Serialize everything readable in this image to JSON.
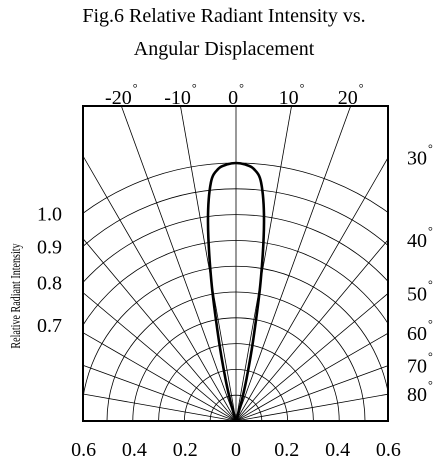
{
  "chart_data": {
    "type": "polar",
    "title_line1": "Fig.6 Relative Radiant Intensity vs.",
    "title_line2": "Angular Displacement",
    "ylabel": "Relative Radiant Intensity",
    "top_angle_ticks": [
      {
        "angle": -20,
        "label": "-20"
      },
      {
        "angle": -10,
        "label": "-10"
      },
      {
        "angle": 0,
        "label": "0"
      },
      {
        "angle": 10,
        "label": "10"
      },
      {
        "angle": 20,
        "label": "20"
      }
    ],
    "right_angle_ticks": [
      {
        "angle": 30,
        "label": "30"
      },
      {
        "angle": 40,
        "label": "40"
      },
      {
        "angle": 50,
        "label": "50"
      },
      {
        "angle": 60,
        "label": "60"
      },
      {
        "angle": 70,
        "label": "70"
      },
      {
        "angle": 80,
        "label": "80"
      }
    ],
    "degree_symbol": "°",
    "left_intensity_labels": [
      {
        "value": 1.0,
        "label": "1.0"
      },
      {
        "value": 0.9,
        "label": "0.9"
      },
      {
        "value": 0.8,
        "label": "0.8"
      },
      {
        "value": 0.7,
        "label": "0.7"
      }
    ],
    "bottom_ticks": [
      {
        "value": -0.6,
        "label": "0.6"
      },
      {
        "value": -0.4,
        "label": "0.4"
      },
      {
        "value": -0.2,
        "label": "0.2"
      },
      {
        "value": 0,
        "label": "0"
      },
      {
        "value": 0.2,
        "label": "0.2"
      },
      {
        "value": 0.4,
        "label": "0.4"
      },
      {
        "value": 0.6,
        "label": "0.6"
      }
    ],
    "grid_radial_step_deg": 10,
    "grid_arc_radii": [
      0.1,
      0.2,
      0.3,
      0.4,
      0.5,
      0.6,
      0.7,
      0.8,
      0.9,
      1.0
    ],
    "x_range": [
      -0.6,
      0.6
    ],
    "series": [
      {
        "points": [
          {
            "angle": 0,
            "intensity": 1.0
          },
          {
            "angle": 2,
            "intensity": 0.995
          },
          {
            "angle": 4,
            "intensity": 0.98
          },
          {
            "angle": 6,
            "intensity": 0.93
          },
          {
            "angle": 8,
            "intensity": 0.78
          },
          {
            "angle": 10,
            "intensity": 0.55
          },
          {
            "angle": 12,
            "intensity": 0.32
          },
          {
            "angle": 14,
            "intensity": 0.17
          },
          {
            "angle": 16,
            "intensity": 0.07
          },
          {
            "angle": 18,
            "intensity": 0.0
          }
        ]
      }
    ]
  }
}
